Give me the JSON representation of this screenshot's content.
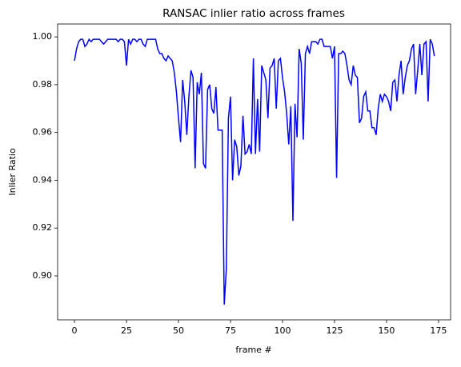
{
  "chart_data": {
    "type": "line",
    "title": "RANSAC inlier ratio across frames",
    "x_label": "frame #",
    "y_label": "Inlier Ratio",
    "x": [
      0,
      1,
      2,
      3,
      4,
      5,
      6,
      7,
      8,
      9,
      10,
      11,
      12,
      13,
      14,
      15,
      16,
      17,
      18,
      19,
      20,
      21,
      22,
      23,
      24,
      25,
      26,
      27,
      28,
      29,
      30,
      31,
      32,
      33,
      34,
      35,
      36,
      37,
      38,
      39,
      40,
      41,
      42,
      43,
      44,
      45,
      46,
      47,
      48,
      49,
      50,
      51,
      52,
      53,
      54,
      55,
      56,
      57,
      58,
      59,
      60,
      61,
      62,
      63,
      64,
      65,
      66,
      67,
      68,
      69,
      70,
      71,
      72,
      73,
      74,
      75,
      76,
      77,
      78,
      79,
      80,
      81,
      82,
      83,
      84,
      85,
      86,
      87,
      88,
      89,
      90,
      91,
      92,
      93,
      94,
      95,
      96,
      97,
      98,
      99,
      100,
      101,
      102,
      103,
      104,
      105,
      106,
      107,
      108,
      109,
      110,
      111,
      112,
      113,
      114,
      115,
      116,
      117,
      118,
      119,
      120,
      121,
      122,
      123,
      124,
      125,
      126,
      127,
      128,
      129,
      130,
      131,
      132,
      133,
      134,
      135,
      136,
      137,
      138,
      139,
      140,
      141,
      142,
      143,
      144,
      145,
      146,
      147,
      148,
      149,
      150,
      151,
      152,
      153,
      154,
      155,
      156,
      157,
      158,
      159,
      160,
      161,
      162,
      163,
      164,
      165,
      166,
      167,
      168,
      169,
      170,
      171,
      172,
      173
    ],
    "series": [
      {
        "name": "inlier ratio",
        "color": "#0000ff",
        "values": [
          0.99,
          0.995,
          0.998,
          0.999,
          0.999,
          0.996,
          0.997,
          0.999,
          0.998,
          0.999,
          0.999,
          0.999,
          0.999,
          0.998,
          0.997,
          0.998,
          0.999,
          0.999,
          0.999,
          0.999,
          0.999,
          0.998,
          0.999,
          0.999,
          0.998,
          0.988,
          0.999,
          0.997,
          0.999,
          0.999,
          0.998,
          0.999,
          0.999,
          0.997,
          0.996,
          0.999,
          0.999,
          0.999,
          0.999,
          0.999,
          0.995,
          0.993,
          0.993,
          0.991,
          0.99,
          0.992,
          0.991,
          0.99,
          0.985,
          0.977,
          0.966,
          0.956,
          0.982,
          0.973,
          0.959,
          0.975,
          0.986,
          0.983,
          0.945,
          0.981,
          0.976,
          0.985,
          0.947,
          0.945,
          0.978,
          0.98,
          0.97,
          0.968,
          0.979,
          0.961,
          0.961,
          0.961,
          0.888,
          0.903,
          0.966,
          0.975,
          0.94,
          0.957,
          0.954,
          0.942,
          0.946,
          0.967,
          0.951,
          0.952,
          0.955,
          0.951,
          0.991,
          0.951,
          0.974,
          0.952,
          0.988,
          0.985,
          0.982,
          0.966,
          0.987,
          0.988,
          0.991,
          0.97,
          0.99,
          0.991,
          0.983,
          0.977,
          0.968,
          0.955,
          0.971,
          0.923,
          0.972,
          0.958,
          0.995,
          0.989,
          0.957,
          0.993,
          0.996,
          0.993,
          0.998,
          0.998,
          0.998,
          0.997,
          0.999,
          0.999,
          0.996,
          0.996,
          0.996,
          0.996,
          0.991,
          0.996,
          0.941,
          0.993,
          0.993,
          0.994,
          0.993,
          0.988,
          0.982,
          0.98,
          0.988,
          0.984,
          0.983,
          0.964,
          0.966,
          0.975,
          0.977,
          0.969,
          0.969,
          0.962,
          0.962,
          0.959,
          0.97,
          0.976,
          0.973,
          0.976,
          0.975,
          0.973,
          0.969,
          0.981,
          0.982,
          0.973,
          0.984,
          0.99,
          0.976,
          0.983,
          0.988,
          0.99,
          0.995,
          0.997,
          0.976,
          0.986,
          0.997,
          0.984,
          0.997,
          0.998,
          0.973,
          0.999,
          0.997,
          0.992
        ]
      }
    ],
    "xlim": [
      -8.1,
      180.8
    ],
    "xticks": [
      0,
      25,
      50,
      75,
      100,
      125,
      150,
      175
    ],
    "ylim": [
      0.8816,
      1.0054
    ],
    "yticks": [
      {
        "value": 0.9,
        "label": "0.90"
      },
      {
        "value": 0.92,
        "label": "0.92"
      },
      {
        "value": 0.94,
        "label": "0.94"
      },
      {
        "value": 0.96,
        "label": "0.96"
      },
      {
        "value": 0.98,
        "label": "0.98"
      },
      {
        "value": 1.0,
        "label": "1.00"
      }
    ],
    "grid": false
  }
}
